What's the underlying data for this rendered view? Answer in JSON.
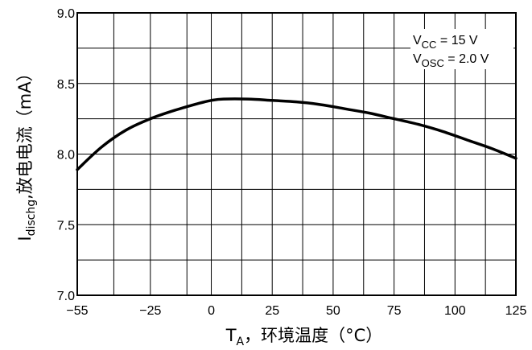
{
  "chart_data": {
    "type": "line",
    "title": "",
    "xlabel": {
      "main": "T",
      "sub": "A",
      "rest": "，环境温度（°C）"
    },
    "ylabel": {
      "main": "I",
      "sub": "dischg",
      "rest": ",放电电流（mA）"
    },
    "xlim": [
      -55,
      125
    ],
    "ylim": [
      7.0,
      9.0
    ],
    "grid": true,
    "x_ticks": [
      -55,
      -25,
      0,
      25,
      50,
      75,
      100,
      125
    ],
    "x_tick_labels": [
      "−55",
      "−25",
      "0",
      "25",
      "50",
      "75",
      "100",
      "125"
    ],
    "y_ticks": [
      7.0,
      7.5,
      8.0,
      8.5,
      9.0
    ],
    "y_tick_labels": [
      "7.0",
      "7.5",
      "8.0",
      "8.5",
      "9.0"
    ],
    "x_minor_gridlines": [
      -40,
      -10,
      12.5,
      37.5,
      62.5,
      87.5,
      112.5
    ],
    "y_minor_gridlines": [
      7.25,
      7.75,
      8.25,
      8.75
    ],
    "series": [
      {
        "x": [
          -55,
          -45,
          -35,
          -25,
          -15,
          -5,
          0,
          5,
          15,
          25,
          35,
          45,
          55,
          65,
          75,
          85,
          95,
          105,
          115,
          125
        ],
        "y": [
          7.89,
          8.05,
          8.17,
          8.25,
          8.31,
          8.36,
          8.38,
          8.39,
          8.39,
          8.38,
          8.37,
          8.35,
          8.32,
          8.29,
          8.25,
          8.21,
          8.16,
          8.1,
          8.04,
          7.97
        ],
        "color": "#000000"
      }
    ],
    "annotations": [
      {
        "main": "V",
        "sub": "CC",
        "rest": " = 15 V"
      },
      {
        "main": "V",
        "sub": "OSC",
        "rest": " = 2.0 V"
      }
    ]
  }
}
